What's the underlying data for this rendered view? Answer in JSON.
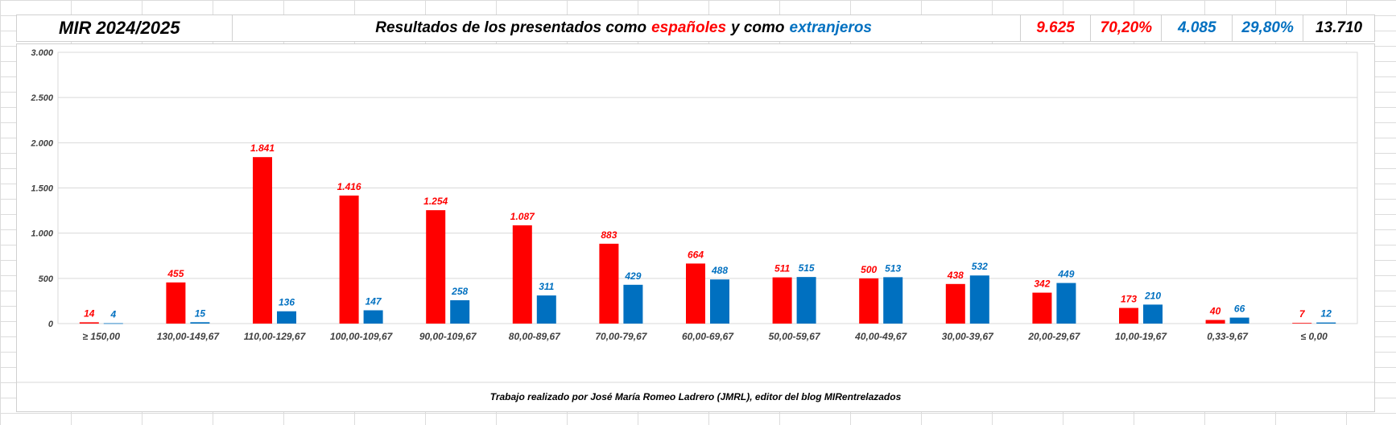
{
  "header": {
    "title": "MIR 2024/2025",
    "subtitle_prefix": "Resultados de los presentados como",
    "subtitle_red": "españoles",
    "subtitle_mid": "y como",
    "subtitle_blue": "extranjeros",
    "spanish_total": "9.625",
    "spanish_pct": "70,20%",
    "foreign_total": "4.085",
    "foreign_pct": "29,80%",
    "grand_total": "13.710"
  },
  "colors": {
    "spanish": "#ff0000",
    "foreign": "#0070c0"
  },
  "chart_data": {
    "type": "bar",
    "categories": [
      "≥ 150,00",
      "130,00-149,67",
      "110,00-129,67",
      "100,00-109,67",
      "90,00-109,67",
      "80,00-89,67",
      "70,00-79,67",
      "60,00-69,67",
      "50,00-59,67",
      "40,00-49,67",
      "30,00-39,67",
      "20,00-29,67",
      "10,00-19,67",
      "0,33-9,67",
      "≤ 0,00"
    ],
    "series": [
      {
        "values": [
          14,
          455,
          1841,
          1416,
          1254,
          1087,
          883,
          664,
          511,
          500,
          438,
          342,
          173,
          40,
          7
        ],
        "labels": [
          "14",
          "455",
          "1.841",
          "1.416",
          "1.254",
          "1.087",
          "883",
          "664",
          "511",
          "500",
          "438",
          "342",
          "173",
          "40",
          "7"
        ]
      },
      {
        "values": [
          4,
          15,
          136,
          147,
          258,
          311,
          429,
          488,
          515,
          513,
          532,
          449,
          210,
          66,
          12
        ],
        "labels": [
          "4",
          "15",
          "136",
          "147",
          "258",
          "311",
          "429",
          "488",
          "515",
          "513",
          "532",
          "449",
          "210",
          "66",
          "12"
        ]
      }
    ],
    "ylim": [
      0,
      3000
    ],
    "yticks": [
      0,
      500,
      1000,
      1500,
      2000,
      2500,
      3000
    ],
    "ytick_labels": [
      "0",
      "500",
      "1.000",
      "1.500",
      "2.000",
      "2.500",
      "3.000"
    ],
    "grid": true,
    "footer": "Trabajo realizado por José María Romeo Ladrero (JMRL), editor del blog MIRentrelazados"
  }
}
